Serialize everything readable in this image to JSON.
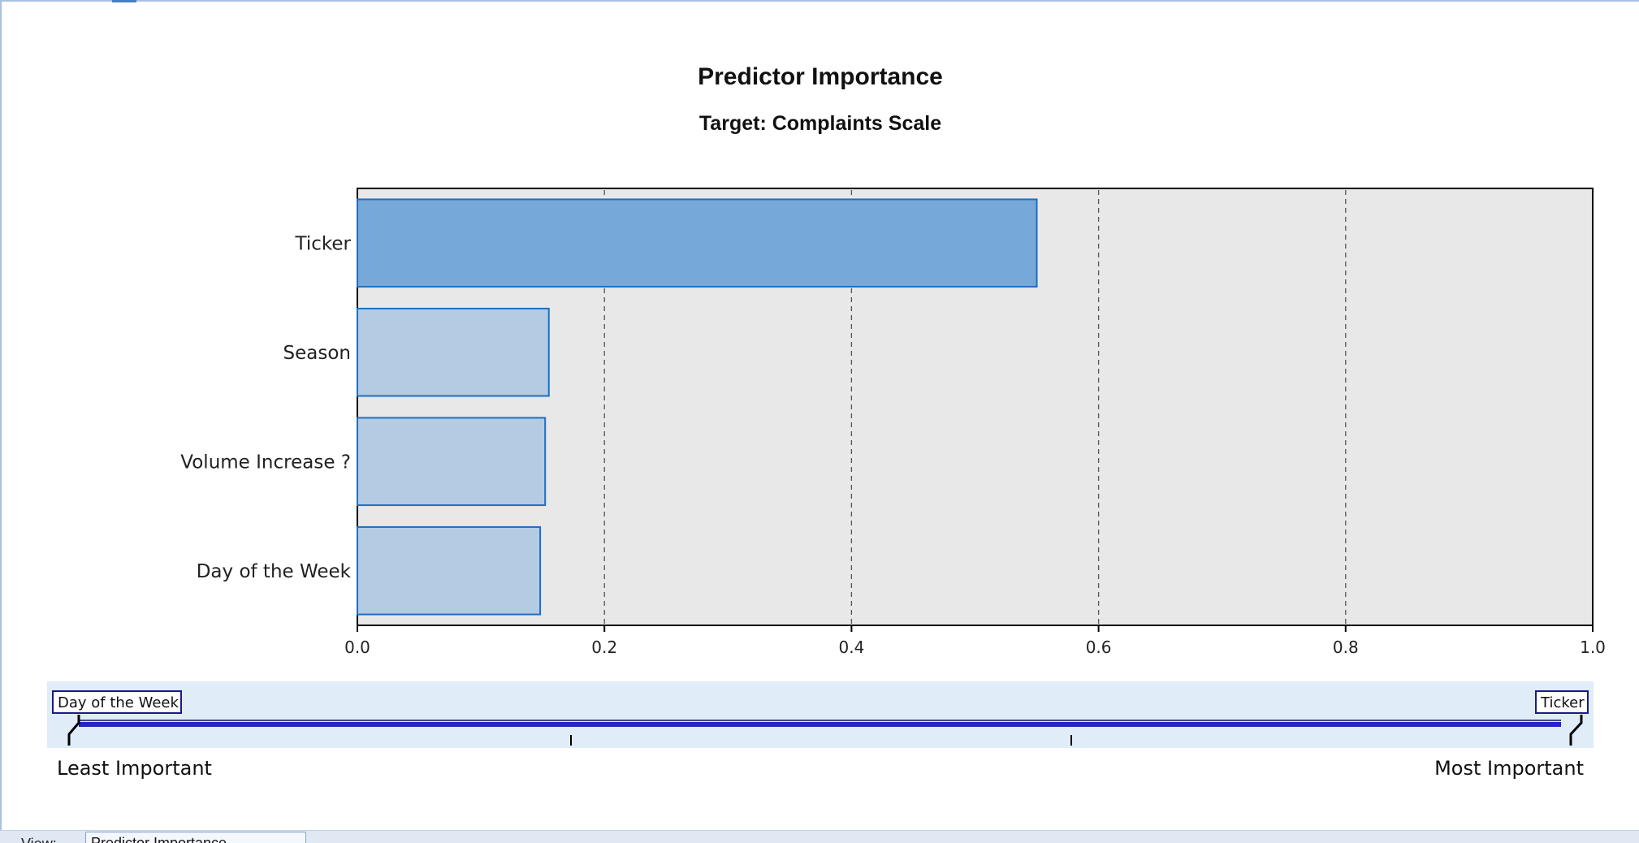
{
  "colors": {
    "plot_background": "#e8e8e8",
    "bar_highlight": "#76a8da",
    "bar_normal": "#b3cce4",
    "bar_stroke": "#1f6fc0",
    "slider_band": "#e0ecf8",
    "slider_track": "#2424c8"
  },
  "chart_data": {
    "type": "bar",
    "orientation": "horizontal",
    "title": "Predictor Importance",
    "subtitle": "Target: Complaints Scale",
    "categories": [
      "Ticker",
      "Season",
      "Volume Increase ?",
      "Day of the Week"
    ],
    "values": [
      0.55,
      0.155,
      0.152,
      0.148
    ],
    "highlighted": "Ticker",
    "xlim": [
      0.0,
      1.0
    ],
    "xticks": [
      "0.0",
      "0.2",
      "0.4",
      "0.6",
      "0.8",
      "1.0"
    ],
    "grid": "vertical dashed"
  },
  "importance_slider": {
    "left_selected": "Day of the Week",
    "right_selected": "Ticker",
    "least_label": "Least Important",
    "most_label": "Most Important"
  },
  "footer": {
    "view_label": "View:",
    "view_value": "Predictor Importance"
  }
}
